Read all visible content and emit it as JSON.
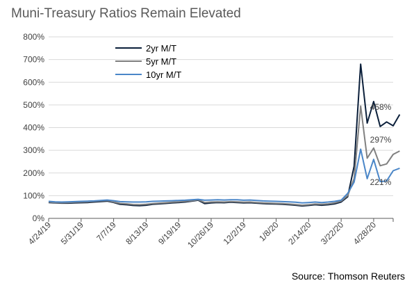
{
  "chart_data": {
    "type": "line",
    "title": "Muni-Treasury Ratios Remain Elevated",
    "source": "Source:  Thomson Reuters",
    "ylim": [
      0,
      800
    ],
    "yticks": [
      0,
      100,
      200,
      300,
      400,
      500,
      600,
      700,
      800
    ],
    "ytick_labels": [
      "0%",
      "100%",
      "200%",
      "300%",
      "400%",
      "500%",
      "600%",
      "700%",
      "800%"
    ],
    "x_range": [
      0,
      53
    ],
    "xticks": [
      0,
      5,
      10,
      15,
      20,
      25,
      30,
      35,
      40,
      45,
      50,
      53
    ],
    "xtick_labels": [
      "4/24/19",
      "5/31/19",
      "7/7/19",
      "8/13/19",
      "9/19/19",
      "10/26/19",
      "12/2/19",
      "1/8/20",
      "2/14/20",
      "3/22/20",
      "4/28/20",
      ""
    ],
    "grid": "horizontal",
    "legend_position": "top-center",
    "series": [
      {
        "name": "2yr M/T",
        "color": "#0b1f3a",
        "values": [
          70,
          68,
          67,
          67,
          68,
          69,
          70,
          72,
          74,
          76,
          70,
          62,
          60,
          57,
          56,
          58,
          62,
          64,
          66,
          68,
          70,
          72,
          76,
          80,
          65,
          68,
          70,
          69,
          71,
          70,
          68,
          69,
          67,
          65,
          64,
          63,
          62,
          60,
          58,
          55,
          57,
          60,
          58,
          60,
          64,
          72,
          95,
          230,
          680,
          420,
          515,
          405,
          425,
          408,
          458
        ],
        "end_label": "458%"
      },
      {
        "name": "5yr M/T",
        "color": "#808080",
        "values": [
          72,
          70,
          69,
          70,
          71,
          72,
          73,
          75,
          77,
          79,
          72,
          66,
          64,
          61,
          60,
          62,
          65,
          67,
          69,
          71,
          73,
          75,
          78,
          82,
          70,
          72,
          73,
          72,
          74,
          73,
          71,
          72,
          70,
          68,
          67,
          66,
          65,
          63,
          61,
          58,
          60,
          63,
          62,
          64,
          68,
          76,
          100,
          175,
          495,
          265,
          310,
          232,
          240,
          282,
          297
        ],
        "end_label": "297%"
      },
      {
        "name": "10yr M/T",
        "color": "#4a86c8",
        "values": [
          75,
          73,
          72,
          73,
          74,
          75,
          76,
          77,
          79,
          81,
          78,
          74,
          73,
          72,
          72,
          73,
          75,
          76,
          77,
          78,
          79,
          80,
          82,
          84,
          80,
          81,
          82,
          81,
          82,
          82,
          80,
          81,
          79,
          77,
          76,
          75,
          74,
          73,
          71,
          68,
          70,
          72,
          70,
          72,
          75,
          80,
          110,
          160,
          305,
          175,
          260,
          162,
          165,
          210,
          221
        ],
        "end_label": "221%"
      }
    ]
  }
}
